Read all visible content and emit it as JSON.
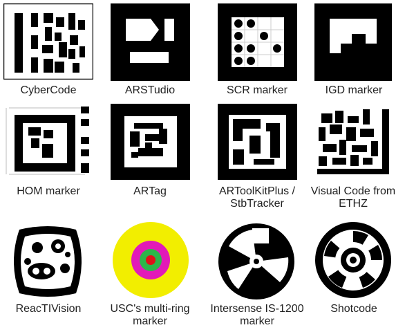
{
  "markers": [
    {
      "label": "CyberCode"
    },
    {
      "label": "ARSTudio"
    },
    {
      "label": "SCR marker"
    },
    {
      "label": "IGD marker"
    },
    {
      "label": "HOM marker"
    },
    {
      "label": "ARTag"
    },
    {
      "label": "ARToolKitPlus / StbTracker"
    },
    {
      "label": "Visual Code from ETHZ"
    },
    {
      "label": "ReacTIVision"
    },
    {
      "label": "USC's multi-ring marker"
    },
    {
      "label": "Intersense IS-1200 marker"
    },
    {
      "label": "Shotcode"
    }
  ],
  "colors": {
    "ink": "#000000",
    "paper": "#ffffff",
    "usc_outer": "#f2ee00",
    "usc_ring": "#e21ab8",
    "usc_green": "#2cb64a",
    "usc_center": "#e0101a"
  }
}
